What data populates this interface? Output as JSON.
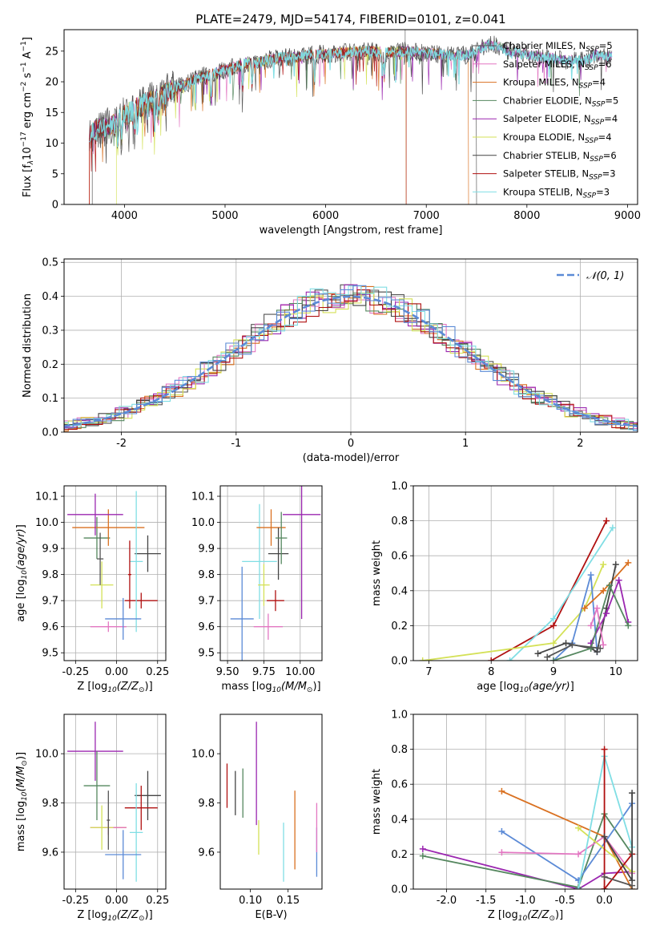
{
  "figure_title": "PLATE=2479, MJD=54174, FIBERID=0101, z=0.041",
  "colors": {
    "c0": "#555555",
    "c1": "#e377c2",
    "c2": "#d97020",
    "c3": "#55875f",
    "c4": "#9b27b0",
    "c5": "#d4e157",
    "c6": "#444444",
    "c7": "#b01010",
    "c8": "#80dee4",
    "blue": "#5b8ad6"
  },
  "chart_data": [
    {
      "type": "line",
      "id": "spectrum",
      "title": "PLATE=2479, MJD=54174, FIBERID=0101, z=0.041",
      "xlabel": "wavelength [Angstrom, rest frame]",
      "ylabel": "Flux [fλ10⁻¹⁷ erg cm⁻² s⁻¹ A⁻¹]",
      "xlim": [
        3400,
        9100
      ],
      "ylim": [
        0,
        28.5
      ],
      "xticks": [
        4000,
        5000,
        6000,
        7000,
        8000,
        9000
      ],
      "yticks": [
        0,
        5,
        10,
        15,
        20,
        25
      ],
      "grid": false,
      "legend_position": "upper right",
      "series": [
        {
          "name": "Chabrier MILES, N",
          "sub": "SSP",
          "suffix": "=5",
          "color": "#555555"
        },
        {
          "name": "Salpeter MILES, N",
          "sub": "SSP",
          "suffix": "=6",
          "color": "#e377c2"
        },
        {
          "name": "Kroupa MILES, N",
          "sub": "SSP",
          "suffix": "=4",
          "color": "#d97020"
        },
        {
          "name": "Chabrier ELODIE, N",
          "sub": "SSP",
          "suffix": "=5",
          "color": "#55875f"
        },
        {
          "name": "Salpeter ELODIE, N",
          "sub": "SSP",
          "suffix": "=4",
          "color": "#9b27b0"
        },
        {
          "name": "Kroupa ELODIE, N",
          "sub": "SSP",
          "suffix": "=4",
          "color": "#d4e157"
        },
        {
          "name": "Chabrier STELIB, N",
          "sub": "SSP",
          "suffix": "=6",
          "color": "#444444"
        },
        {
          "name": "Salpeter STELIB, N",
          "sub": "SSP",
          "suffix": "=3",
          "color": "#b01010"
        },
        {
          "name": "Kroupa STELIB, N",
          "sub": "SSP",
          "suffix": "=3",
          "color": "#80dee4"
        }
      ],
      "continuum": [
        [
          3650,
          11
        ],
        [
          3700,
          12
        ],
        [
          3800,
          12.5
        ],
        [
          3900,
          13
        ],
        [
          4000,
          14.5
        ],
        [
          4100,
          15.5
        ],
        [
          4200,
          16.5
        ],
        [
          4300,
          17
        ],
        [
          4400,
          18
        ],
        [
          4500,
          19
        ],
        [
          4600,
          19.5
        ],
        [
          4700,
          20.5
        ],
        [
          4800,
          21
        ],
        [
          4900,
          21.5
        ],
        [
          5000,
          22
        ],
        [
          5100,
          22.5
        ],
        [
          5200,
          23
        ],
        [
          5300,
          23
        ],
        [
          5400,
          23.5
        ],
        [
          5500,
          23.8
        ],
        [
          5600,
          24
        ],
        [
          5700,
          24
        ],
        [
          5800,
          24.3
        ],
        [
          5900,
          24.5
        ],
        [
          6000,
          24.5
        ],
        [
          6200,
          24.8
        ],
        [
          6400,
          25
        ],
        [
          6600,
          24.8
        ],
        [
          6800,
          25
        ],
        [
          7000,
          24.7
        ],
        [
          7200,
          24.4
        ],
        [
          7400,
          24.3
        ],
        [
          7500,
          25
        ],
        [
          7600,
          26
        ],
        [
          7700,
          26
        ],
        [
          7800,
          25
        ],
        [
          8000,
          24.5
        ],
        [
          8200,
          24
        ],
        [
          8400,
          23.5
        ],
        [
          8600,
          23.5
        ],
        [
          8700,
          24.5
        ],
        [
          8800,
          24
        ],
        [
          8850,
          24.5
        ]
      ],
      "cutoffs": [
        {
          "series": 0,
          "x": [
            3680,
            7500
          ]
        },
        {
          "series": 2,
          "x": [
            3650,
            7420
          ]
        },
        {
          "series": 5,
          "x": [
            3920,
            6800
          ]
        },
        {
          "series": 7,
          "x": [
            3650,
            6800
          ]
        }
      ]
    },
    {
      "type": "histogram",
      "id": "residuals",
      "xlabel": "(data-model)/error",
      "ylabel": "Normed distribution",
      "xlim": [
        -2.5,
        2.5
      ],
      "ylim": [
        0,
        0.51
      ],
      "xticks": [
        -2,
        -1,
        0,
        1,
        2
      ],
      "yticks": [
        0.0,
        0.1,
        0.2,
        0.3,
        0.4,
        0.5
      ],
      "grid": true,
      "legend": [
        {
          "label": "𝒩(0, 1)",
          "style": "dashed",
          "color": "#5b8ad6"
        }
      ],
      "legend_position": "upper right",
      "bin_width": 0.111,
      "bin_start": -2.72,
      "reference_curve": {
        "mu": 0,
        "sigma": 1
      }
    },
    {
      "type": "scatter",
      "id": "age_vs_Z",
      "xlabel": "Z [log10(Z/Z⊙)]",
      "ylabel": "age  [log10(age/yr)]",
      "xlim": [
        -0.32,
        0.3
      ],
      "ylim": [
        9.47,
        10.14
      ],
      "xticks": [
        -0.25,
        0.0,
        0.25
      ],
      "yticks": [
        9.5,
        9.6,
        9.7,
        9.8,
        9.9,
        10.0,
        10.1
      ],
      "grid": true,
      "points": [
        {
          "x": -0.12,
          "y": 9.94,
          "xerr": 0.08,
          "yerr": 0.08,
          "c": "c3"
        },
        {
          "x": -0.05,
          "y": 9.6,
          "xerr": 0.11,
          "yerr": 0.02,
          "c": "c1"
        },
        {
          "x": -0.05,
          "y": 9.98,
          "xerr": 0.22,
          "yerr": 0.07,
          "c": "c2"
        },
        {
          "x": -0.13,
          "y": 10.03,
          "xerr": 0.17,
          "yerr": 0.08,
          "c": "c4"
        },
        {
          "x": -0.09,
          "y": 9.76,
          "xerr": 0.07,
          "yerr": 0.09,
          "c": "c5"
        },
        {
          "x": 0.19,
          "y": 9.88,
          "xerr": 0.08,
          "yerr": 0.07,
          "c": "c6"
        },
        {
          "x": 0.15,
          "y": 9.7,
          "xerr": 0.1,
          "yerr": 0.03,
          "c": "c7"
        },
        {
          "x": 0.12,
          "y": 9.85,
          "xerr": 0.04,
          "yerr": 0.27,
          "c": "c8"
        },
        {
          "x": 0.04,
          "y": 9.63,
          "xerr": 0.11,
          "yerr": 0.08,
          "c": "blue"
        },
        {
          "x": 0.08,
          "y": 9.8,
          "xerr": 0.01,
          "yerr": 0.13,
          "c": "c7"
        },
        {
          "x": -0.1,
          "y": 9.86,
          "xerr": 0.02,
          "yerr": 0.1,
          "c": "c0"
        }
      ]
    },
    {
      "type": "scatter",
      "id": "age_vs_mass",
      "xlabel": "mass [log10(M/M⊙)]",
      "ylabel": "",
      "xlim": [
        9.45,
        10.15
      ],
      "ylim": [
        9.47,
        10.14
      ],
      "xticks": [
        9.5,
        9.75,
        10.0
      ],
      "yticks": [
        9.5,
        9.6,
        9.7,
        9.8,
        9.9,
        10.0,
        10.1
      ],
      "grid": true,
      "points": [
        {
          "x": 9.6,
          "y": 9.63,
          "xerr": 0.08,
          "yerr": 0.2,
          "c": "blue"
        },
        {
          "x": 9.72,
          "y": 9.85,
          "xerr": 0.12,
          "yerr": 0.22,
          "c": "c8"
        },
        {
          "x": 9.78,
          "y": 9.6,
          "xerr": 0.1,
          "yerr": 0.05,
          "c": "c1"
        },
        {
          "x": 9.8,
          "y": 9.98,
          "xerr": 0.1,
          "yerr": 0.07,
          "c": "c2"
        },
        {
          "x": 10.01,
          "y": 10.03,
          "xerr": 0.13,
          "yerr": 0.4,
          "c": "c4"
        },
        {
          "x": 9.85,
          "y": 9.88,
          "xerr": 0.07,
          "yerr": 0.1,
          "c": "c6"
        },
        {
          "x": 9.87,
          "y": 9.94,
          "xerr": 0.04,
          "yerr": 0.1,
          "c": "c3"
        },
        {
          "x": 9.83,
          "y": 9.7,
          "xerr": 0.06,
          "yerr": 0.04,
          "c": "c7"
        },
        {
          "x": 9.75,
          "y": 9.76,
          "xerr": 0.04,
          "yerr": 0.08,
          "c": "c5"
        }
      ]
    },
    {
      "type": "line",
      "id": "mass_weight_vs_age",
      "xlabel": "age  [log10(age/yr)]",
      "ylabel": "mass weight",
      "xlim": [
        6.75,
        10.35
      ],
      "ylim": [
        0,
        1.0
      ],
      "xticks": [
        7,
        8,
        9,
        10
      ],
      "yticks": [
        0.0,
        0.2,
        0.4,
        0.6,
        0.8,
        1.0
      ],
      "grid": true,
      "series": [
        {
          "c": "c7",
          "x": [
            8.0,
            9.0,
            9.85
          ],
          "y": [
            0.0,
            0.2,
            0.8
          ]
        },
        {
          "c": "c8",
          "x": [
            8.3,
            9.0,
            9.95
          ],
          "y": [
            0.0,
            0.24,
            0.76
          ]
        },
        {
          "c": "c5",
          "x": [
            6.9,
            9.0,
            9.5,
            9.8
          ],
          "y": [
            0.0,
            0.1,
            0.3,
            0.55
          ]
        },
        {
          "c": "blue",
          "x": [
            9.0,
            9.3,
            9.6,
            9.7
          ],
          "y": [
            0.0,
            0.1,
            0.49,
            0.05
          ]
        },
        {
          "c": "c2",
          "x": [
            9.5,
            9.8,
            10.2
          ],
          "y": [
            0.3,
            0.4,
            0.56
          ]
        },
        {
          "c": "c6",
          "x": [
            8.75,
            9.2,
            9.6,
            9.7,
            9.85,
            10.0
          ],
          "y": [
            0.04,
            0.1,
            0.07,
            0.05,
            0.3,
            0.55
          ]
        },
        {
          "c": "c4",
          "x": [
            9.6,
            9.85,
            10.05,
            10.2
          ],
          "y": [
            0.1,
            0.27,
            0.46,
            0.22
          ]
        },
        {
          "c": "c3",
          "x": [
            9.0,
            9.6,
            9.9,
            10.2
          ],
          "y": [
            0.0,
            0.07,
            0.43,
            0.2
          ]
        },
        {
          "c": "c1",
          "x": [
            9.6,
            9.7,
            9.8
          ],
          "y": [
            0.2,
            0.3,
            0.09
          ]
        },
        {
          "c": "c0",
          "x": [
            8.9,
            9.3,
            9.75
          ],
          "y": [
            0.02,
            0.09,
            0.07
          ]
        }
      ]
    },
    {
      "type": "scatter",
      "id": "mass_vs_Z",
      "xlabel": "Z [log10(Z/Z⊙)]",
      "ylabel": "mass [log10(M/M⊙)]",
      "xlim": [
        -0.32,
        0.3
      ],
      "ylim": [
        9.45,
        10.16
      ],
      "xticks": [
        -0.25,
        0.0,
        0.25
      ],
      "yticks": [
        9.6,
        9.8,
        10.0
      ],
      "grid": true,
      "points": [
        {
          "x": -0.13,
          "y": 10.01,
          "xerr": 0.17,
          "yerr": 0.12,
          "c": "c4"
        },
        {
          "x": -0.12,
          "y": 9.87,
          "xerr": 0.08,
          "yerr": 0.14,
          "c": "c3"
        },
        {
          "x": -0.05,
          "y": 9.7,
          "xerr": 0.11,
          "yerr": 0.03,
          "c": "c2"
        },
        {
          "x": -0.05,
          "y": 9.7,
          "xerr": 0.11,
          "yerr": 0.03,
          "c": "c1"
        },
        {
          "x": -0.09,
          "y": 9.7,
          "xerr": 0.07,
          "yerr": 0.09,
          "c": "c5"
        },
        {
          "x": 0.19,
          "y": 9.83,
          "xerr": 0.08,
          "yerr": 0.1,
          "c": "c6"
        },
        {
          "x": 0.15,
          "y": 9.78,
          "xerr": 0.1,
          "yerr": 0.09,
          "c": "c7"
        },
        {
          "x": 0.12,
          "y": 9.68,
          "xerr": 0.04,
          "yerr": 0.2,
          "c": "c8"
        },
        {
          "x": 0.04,
          "y": 9.59,
          "xerr": 0.11,
          "yerr": 0.1,
          "c": "blue"
        },
        {
          "x": -0.05,
          "y": 9.73,
          "xerr": 0.01,
          "yerr": 0.12,
          "c": "c0"
        }
      ]
    },
    {
      "type": "scatter",
      "id": "mass_vs_ebv",
      "xlabel": "E(B-V)",
      "ylabel": "",
      "xlim": [
        0.06,
        0.195
      ],
      "ylim": [
        9.45,
        10.16
      ],
      "xticks": [
        0.1,
        0.15
      ],
      "yticks": [
        9.6,
        9.8,
        10.0
      ],
      "grid": false,
      "points": [
        {
          "x": 0.069,
          "y": 9.87,
          "xerr": 0,
          "yerr": 0.09,
          "c": "c7"
        },
        {
          "x": 0.08,
          "y": 9.84,
          "xerr": 0,
          "yerr": 0.09,
          "c": "c6"
        },
        {
          "x": 0.09,
          "y": 9.84,
          "xerr": 0,
          "yerr": 0.1,
          "c": "c3"
        },
        {
          "x": 0.108,
          "y": 9.92,
          "xerr": 0,
          "yerr": 0.21,
          "c": "c4"
        },
        {
          "x": 0.111,
          "y": 9.66,
          "xerr": 0,
          "yerr": 0.07,
          "c": "c5"
        },
        {
          "x": 0.144,
          "y": 9.6,
          "xerr": 0,
          "yerr": 0.12,
          "c": "c8"
        },
        {
          "x": 0.159,
          "y": 9.69,
          "xerr": 0,
          "yerr": 0.16,
          "c": "c2"
        },
        {
          "x": 0.188,
          "y": 9.6,
          "xerr": 0,
          "yerr": 0.1,
          "c": "blue"
        },
        {
          "x": 0.188,
          "y": 9.7,
          "xerr": 0,
          "yerr": 0.1,
          "c": "c1"
        }
      ]
    },
    {
      "type": "line",
      "id": "mass_weight_vs_Z",
      "xlabel": "Z [log10(Z/Z⊙)]",
      "ylabel": "mass weight",
      "xlim": [
        -2.42,
        0.42
      ],
      "ylim": [
        0,
        1.0
      ],
      "xticks": [
        -2.0,
        -1.5,
        -1.0,
        -0.5,
        0.0
      ],
      "yticks": [
        0.0,
        0.2,
        0.4,
        0.6,
        0.8,
        1.0
      ],
      "grid": true,
      "series": [
        {
          "c": "c4",
          "x": [
            -2.3,
            -0.33,
            0.0,
            0.35
          ],
          "y": [
            0.23,
            0.0,
            0.09,
            0.1
          ]
        },
        {
          "c": "c3",
          "x": [
            -2.3,
            -0.33,
            0.0,
            0.35
          ],
          "y": [
            0.19,
            0.01,
            0.43,
            0.2
          ]
        },
        {
          "c": "c2",
          "x": [
            -1.3,
            0.0,
            0.35
          ],
          "y": [
            0.56,
            0.3,
            0.0
          ]
        },
        {
          "c": "blue",
          "x": [
            -1.3,
            -0.33,
            0.35
          ],
          "y": [
            0.33,
            0.05,
            0.49
          ]
        },
        {
          "c": "c1",
          "x": [
            -1.3,
            -0.33,
            0.0,
            0.35
          ],
          "y": [
            0.21,
            0.2,
            0.3,
            0.09
          ]
        },
        {
          "c": "c5",
          "x": [
            -0.33,
            0.35
          ],
          "y": [
            0.35,
            0.1
          ]
        },
        {
          "c": "c8",
          "x": [
            -0.33,
            0.0,
            0.35
          ],
          "y": [
            0.0,
            0.76,
            0.24
          ]
        },
        {
          "c": "c7",
          "x": [
            0.0,
            0.0,
            0.35,
            0.0
          ],
          "y": [
            0.8,
            0.0,
            0.2,
            0.0
          ]
        },
        {
          "c": "c6",
          "x": [
            0.0,
            0.35,
            0.35
          ],
          "y": [
            0.3,
            0.05,
            0.55
          ]
        },
        {
          "c": "c0",
          "x": [
            0.0,
            0.35
          ],
          "y": [
            0.07,
            0.02
          ]
        }
      ]
    }
  ]
}
